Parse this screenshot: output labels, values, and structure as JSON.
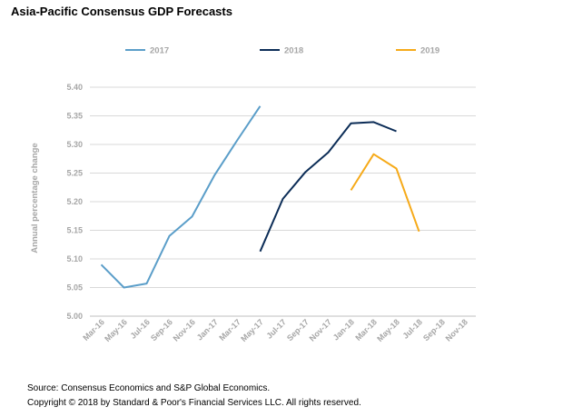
{
  "title": "Asia-Pacific Consensus GDP Forecasts",
  "footer": {
    "source": "Source: Consensus Economics and S&P Global Economics.",
    "copyright": "Copyright © 2018 by Standard & Poor's Financial Services LLC. All rights reserved."
  },
  "chart_data": {
    "type": "line",
    "title": "",
    "ylabel": "Annual percentage change",
    "xlabel": "",
    "ylim": [
      5.0,
      5.4
    ],
    "ytick_labels": [
      "5.00",
      "5.05",
      "5.10",
      "5.15",
      "5.20",
      "5.25",
      "5.30",
      "5.35",
      "5.40"
    ],
    "categories": [
      "Mar-16",
      "May-16",
      "Jul-16",
      "Sep-16",
      "Nov-16",
      "Jan-17",
      "Mar-17",
      "May-17",
      "Jul-17",
      "Sep-17",
      "Nov-17",
      "Jan-18",
      "Mar-18",
      "May-18",
      "Jul-18",
      "Sep-18",
      "Nov-18"
    ],
    "grid": true,
    "legend": "top",
    "series": [
      {
        "name": "2017",
        "color": "#5b9ec9",
        "values": [
          5.09,
          5.05,
          5.057,
          5.14,
          5.174,
          5.247,
          5.308,
          5.367,
          null,
          null,
          null,
          null,
          null,
          null,
          null,
          null,
          null
        ]
      },
      {
        "name": "2018",
        "color": "#0c2d57",
        "values": [
          null,
          null,
          null,
          null,
          null,
          null,
          null,
          5.113,
          5.205,
          5.252,
          5.286,
          5.337,
          5.339,
          5.323,
          null,
          null,
          null
        ]
      },
      {
        "name": "2019",
        "color": "#f6aa19",
        "values": [
          null,
          null,
          null,
          null,
          null,
          null,
          null,
          null,
          null,
          null,
          null,
          5.22,
          5.283,
          5.258,
          5.148,
          null,
          null
        ]
      }
    ]
  }
}
